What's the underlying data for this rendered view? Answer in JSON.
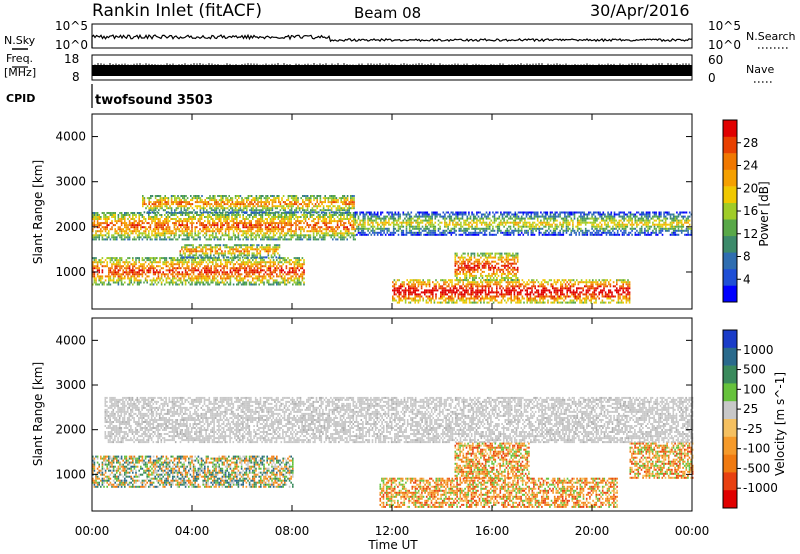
{
  "header": {
    "station": "Rankin Inlet (fitACF)",
    "beam": "Beam 08",
    "date": "30/Apr/2016"
  },
  "top_panels": {
    "nsky_label": "N.Sky",
    "nsky_ticks": [
      "10^5",
      "10^0"
    ],
    "nsearch_label": "N.Search",
    "nsearch_ticks": [
      "10^5",
      "10^0"
    ],
    "freq_label": "Freq.",
    "freq_unit": "[MHz]",
    "freq_ticks": [
      "18",
      "8"
    ],
    "nave_label": "Nave",
    "nave_ticks": [
      "60",
      "0"
    ],
    "cpid_label": "CPID",
    "cpid_text": "twofsound 3503"
  },
  "chart_data": [
    {
      "type": "heatmap",
      "name": "power",
      "ylabel": "Slant Range [km]",
      "yticks": [
        1000,
        2000,
        3000,
        4000
      ],
      "ylim": [
        180,
        4500
      ],
      "xlabel": "Time UT",
      "xticks": [
        "00:00",
        "04:00",
        "08:00",
        "12:00",
        "16:00",
        "20:00",
        "00:00"
      ],
      "xlim_hours": [
        0,
        24
      ],
      "colorbar_label": "Power [dB]",
      "colorbar_ticks": [
        "4",
        "8",
        "12",
        "16",
        "20",
        "24",
        "28"
      ],
      "colorbar_colors": [
        "#0000ff",
        "#1f4fd6",
        "#2f6db0",
        "#3c8a6a",
        "#58a848",
        "#a0cc28",
        "#f0c800",
        "#f5a000",
        "#f07800",
        "#e84000",
        "#e00000"
      ],
      "scatter_bands": [
        {
          "t0": 0.0,
          "t1": 10.5,
          "r0": 1700,
          "r1": 2300,
          "level": 0.62
        },
        {
          "t0": 2.0,
          "t1": 10.5,
          "r0": 2300,
          "r1": 2700,
          "level": 0.55
        },
        {
          "t0": 0.0,
          "t1": 8.5,
          "r0": 700,
          "r1": 1300,
          "level": 0.68
        },
        {
          "t0": 3.5,
          "t1": 7.5,
          "r0": 1300,
          "r1": 1600,
          "level": 0.55
        },
        {
          "t0": 10.5,
          "t1": 24.0,
          "r0": 1800,
          "r1": 2300,
          "level": 0.38
        },
        {
          "t0": 12.0,
          "t1": 21.5,
          "r0": 300,
          "r1": 800,
          "level": 0.82
        },
        {
          "t0": 14.5,
          "t1": 17.0,
          "r0": 800,
          "r1": 1400,
          "level": 0.72
        }
      ]
    },
    {
      "type": "heatmap",
      "name": "velocity",
      "ylabel": "Slant Range [km]",
      "yticks": [
        1000,
        2000,
        3000,
        4000
      ],
      "ylim": [
        180,
        4500
      ],
      "xlabel": "Time UT",
      "xticks": [
        "00:00",
        "04:00",
        "08:00",
        "12:00",
        "16:00",
        "20:00",
        "00:00"
      ],
      "xlim_hours": [
        0,
        24
      ],
      "colorbar_label": "Velocity [m s^-1]",
      "colorbar_ticks": [
        "1000",
        "500",
        "100",
        "25",
        "-25",
        "-100",
        "-500",
        "-1000"
      ],
      "colorbar_colors": [
        "#1a3cc8",
        "#2a6a8c",
        "#3a8a5c",
        "#66c23c",
        "#c8c8c8",
        "#f5c060",
        "#f59a2a",
        "#f07a10",
        "#e84010",
        "#e00000"
      ],
      "scatter_bands": [
        {
          "t0": 0.5,
          "t1": 24.0,
          "r0": 1700,
          "r1": 2700,
          "value": "ground-scatter"
        },
        {
          "t0": 0.0,
          "t1": 8.0,
          "r0": 700,
          "r1": 1400,
          "value": "mixed"
        },
        {
          "t0": 11.5,
          "t1": 21.0,
          "r0": 250,
          "r1": 900,
          "value": -300
        },
        {
          "t0": 14.5,
          "t1": 17.5,
          "r0": 900,
          "r1": 1700,
          "value": -300
        },
        {
          "t0": 21.5,
          "t1": 24.0,
          "r0": 900,
          "r1": 1700,
          "value": -300
        }
      ]
    }
  ]
}
